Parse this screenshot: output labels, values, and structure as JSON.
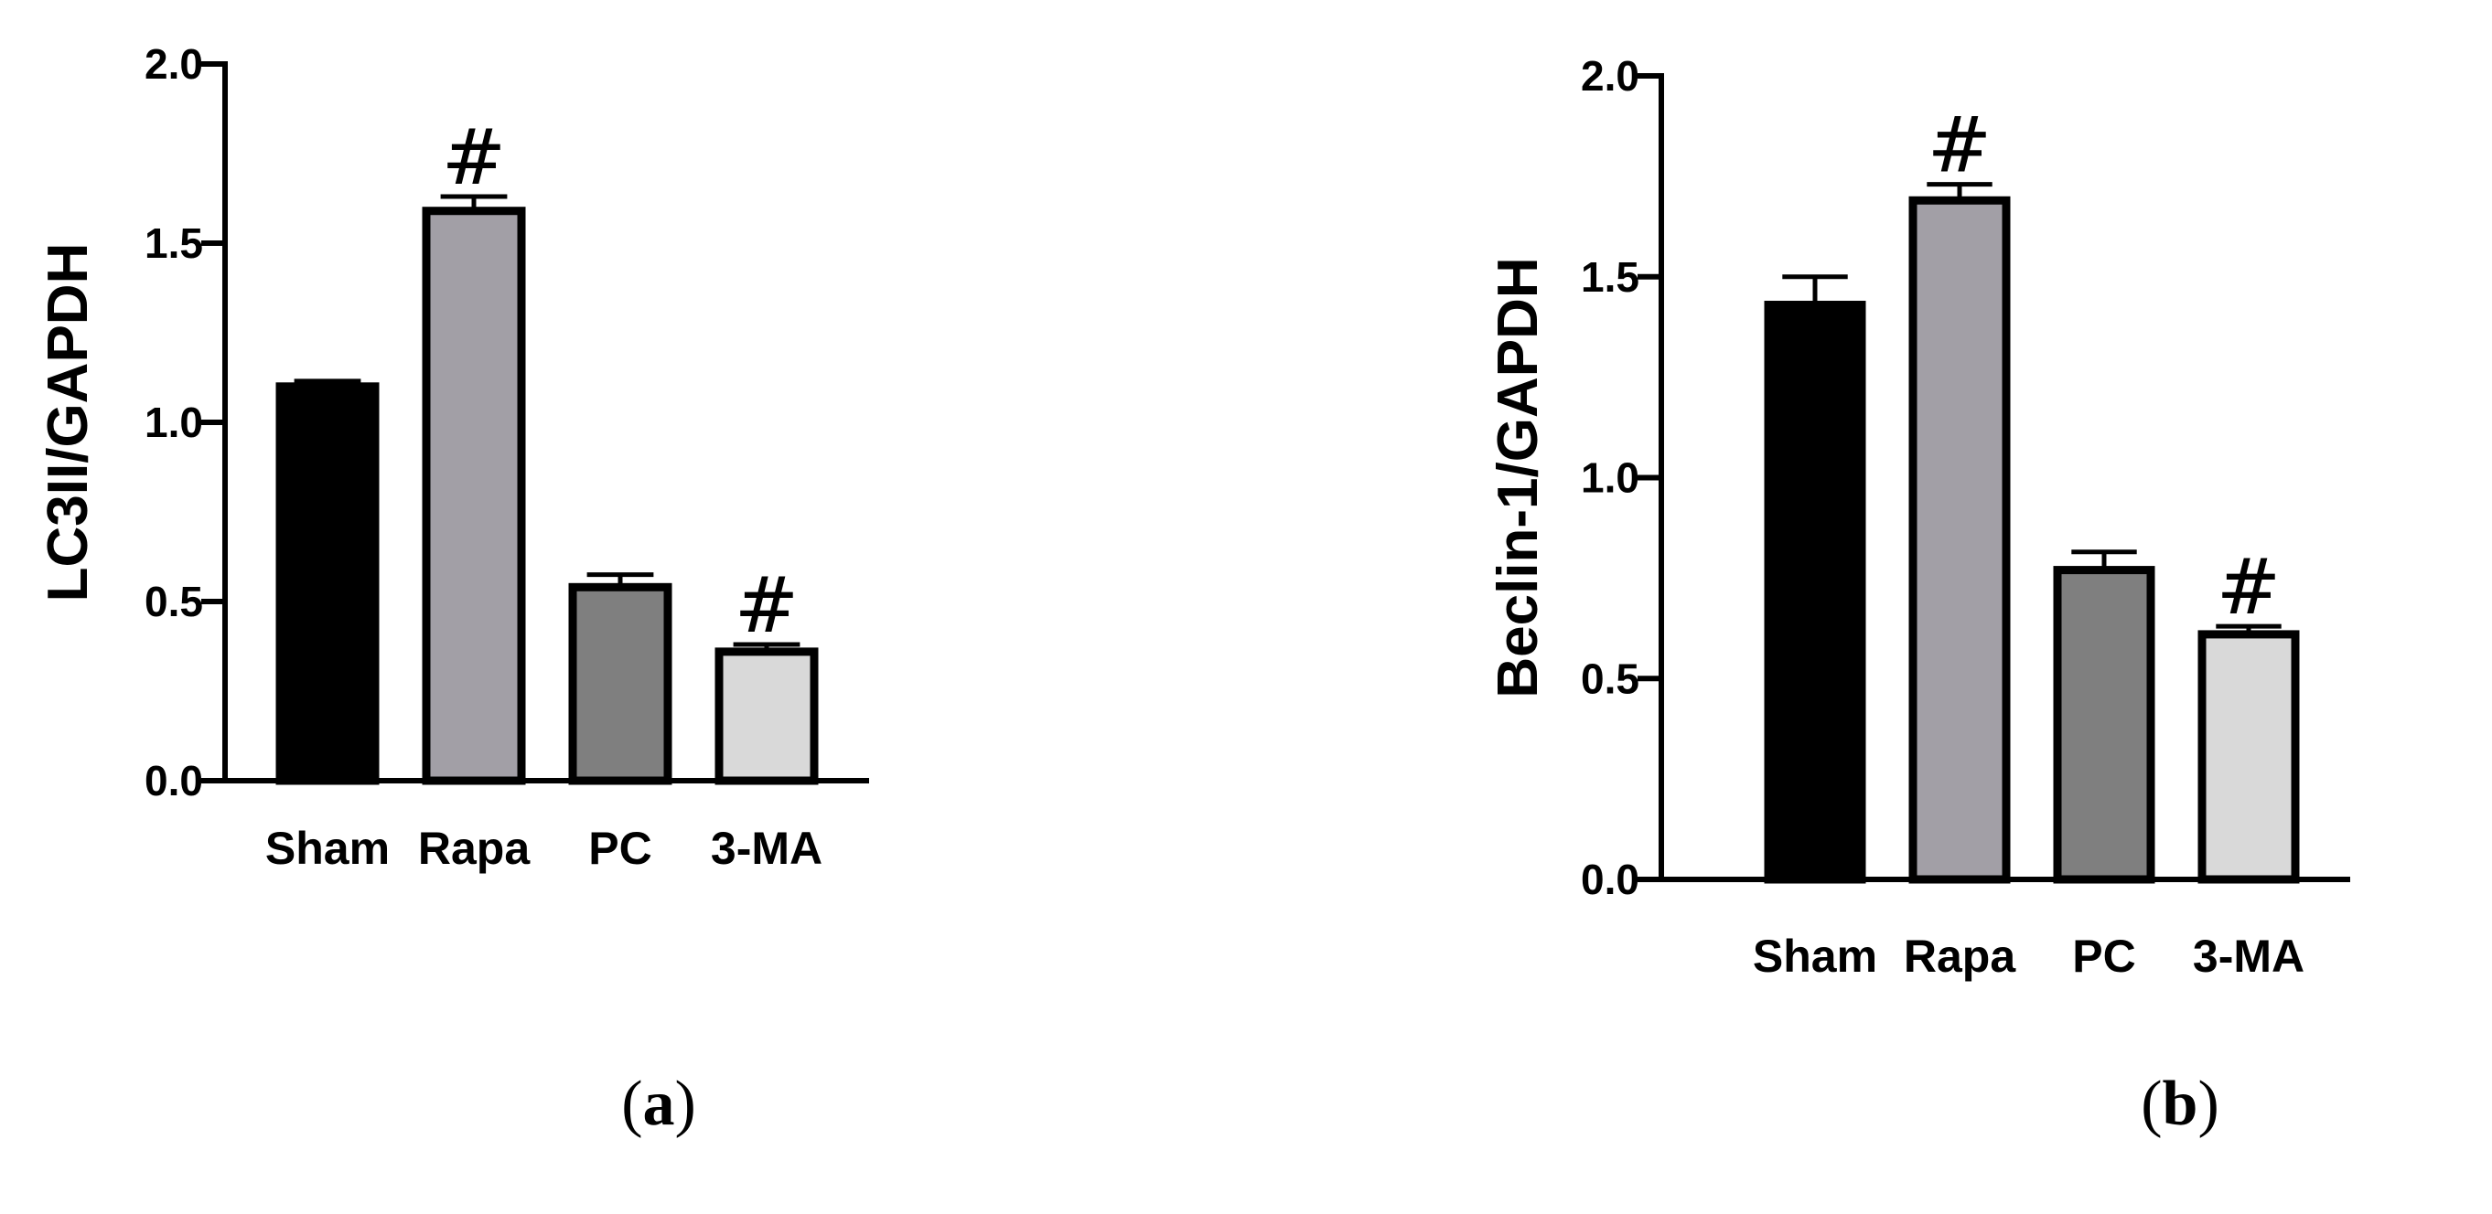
{
  "chart_data": [
    {
      "type": "bar",
      "panel_label": "a",
      "title": "",
      "xlabel": "",
      "ylabel": "LC3II/GAPDH",
      "categories": [
        "Sham",
        "Rapa",
        "PC",
        "3-MA"
      ],
      "values": [
        1.1,
        1.59,
        0.54,
        0.36
      ],
      "errors": [
        0.015,
        0.04,
        0.035,
        0.02
      ],
      "annotations": [
        "",
        "#",
        "",
        "#"
      ],
      "bar_colors": [
        "#000000",
        "#a29fa6",
        "#7f7f7f",
        "#d9d9d9"
      ],
      "ylim": [
        0,
        2.0
      ],
      "yticks": [
        0.0,
        0.5,
        1.0,
        1.5,
        2.0
      ],
      "ytick_labels": [
        "0.0",
        "0.5",
        "1.0",
        "1.5",
        "2.0"
      ],
      "grid": false,
      "legend": "none"
    },
    {
      "type": "bar",
      "panel_label": "b",
      "title": "",
      "xlabel": "",
      "ylabel": "Beclin-1/GAPDH",
      "categories": [
        "Sham",
        "Rapa",
        "PC",
        "3-MA"
      ],
      "values": [
        1.43,
        1.69,
        0.77,
        0.61
      ],
      "errors": [
        0.07,
        0.04,
        0.045,
        0.02
      ],
      "annotations": [
        "",
        "#",
        "",
        "#"
      ],
      "bar_colors": [
        "#000000",
        "#a29fa6",
        "#7f7f7f",
        "#d9d9d9"
      ],
      "ylim": [
        0,
        2.0
      ],
      "yticks": [
        0.0,
        0.5,
        1.0,
        1.5,
        2.0
      ],
      "ytick_labels": [
        "0.0",
        "0.5",
        "1.0",
        "1.5",
        "2.0"
      ],
      "grid": false,
      "legend": "none"
    }
  ]
}
